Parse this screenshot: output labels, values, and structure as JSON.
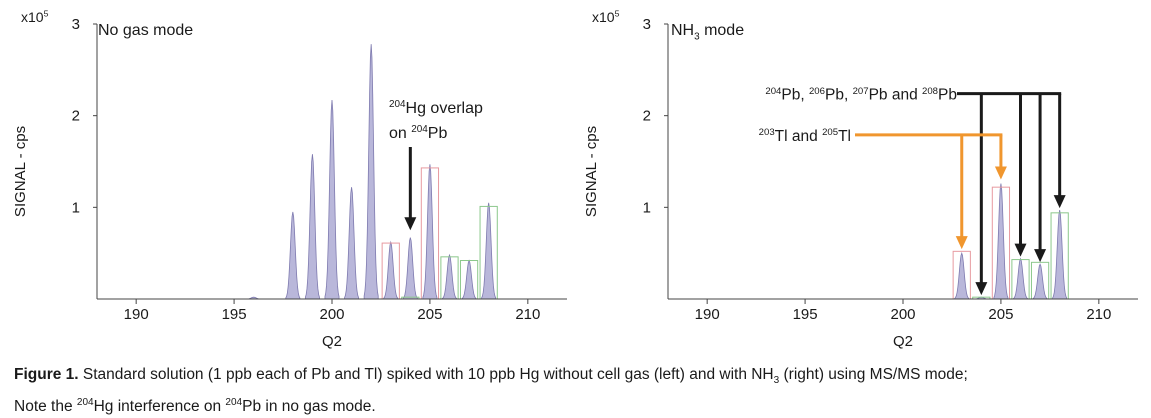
{
  "chart_data": [
    {
      "type": "area",
      "panel": "left",
      "mode_label": "No gas mode",
      "ylabel": "SIGNAL - cps",
      "xlabel": "Q2",
      "y_scale_label": {
        "base": "x10",
        "exp": "5"
      },
      "xlim": [
        188,
        212
      ],
      "ylim": [
        0,
        3
      ],
      "x_ticks": [
        "190",
        "195",
        "200",
        "205",
        "210"
      ],
      "x_tick_values": [
        190,
        195,
        200,
        205,
        210
      ],
      "y_ticks": [
        "1",
        "2",
        "3"
      ],
      "y_tick_values": [
        1,
        2,
        3
      ],
      "peaks": [
        {
          "x": 196,
          "value": 0.02
        },
        {
          "x": 198,
          "value": 0.95
        },
        {
          "x": 199,
          "value": 1.58
        },
        {
          "x": 200,
          "value": 2.17
        },
        {
          "x": 201,
          "value": 1.22
        },
        {
          "x": 202,
          "value": 2.78
        },
        {
          "x": 203,
          "value": 0.62
        },
        {
          "x": 204,
          "value": 0.67
        },
        {
          "x": 205,
          "value": 1.47
        },
        {
          "x": 206,
          "value": 0.48
        },
        {
          "x": 207,
          "value": 0.42
        },
        {
          "x": 208,
          "value": 1.05
        }
      ],
      "boxes": [
        {
          "x": 203,
          "value": 0.61,
          "color": "pink"
        },
        {
          "x": 204,
          "value": 0.02,
          "color": "green"
        },
        {
          "x": 205,
          "value": 1.43,
          "color": "pink"
        },
        {
          "x": 206,
          "value": 0.46,
          "color": "green"
        },
        {
          "x": 207,
          "value": 0.42,
          "color": "green"
        },
        {
          "x": 208,
          "value": 1.01,
          "color": "green"
        }
      ],
      "annotation": {
        "text": [
          [
            {
              "sup": "204"
            },
            {
              "t": "Hg overlap"
            }
          ],
          [
            {
              "t": "on "
            },
            {
              "sup": "204"
            },
            {
              "t": "Pb"
            }
          ]
        ],
        "arrow_x": 204,
        "arrow_to_value": 0.75
      }
    },
    {
      "type": "area",
      "panel": "right",
      "mode_label": {
        "main": "NH",
        "sub": "3",
        "rest": " mode"
      },
      "ylabel": "SIGNAL - cps",
      "xlabel": "Q2",
      "y_scale_label": {
        "base": "x10",
        "exp": "5"
      },
      "xlim": [
        188,
        212
      ],
      "ylim": [
        0,
        3
      ],
      "x_ticks": [
        "190",
        "195",
        "200",
        "205",
        "210"
      ],
      "x_tick_values": [
        190,
        195,
        200,
        205,
        210
      ],
      "y_ticks": [
        "1",
        "2",
        "3"
      ],
      "y_tick_values": [
        1,
        2,
        3
      ],
      "peaks": [
        {
          "x": 203,
          "value": 0.5
        },
        {
          "x": 204,
          "value": 0.02
        },
        {
          "x": 205,
          "value": 1.26
        },
        {
          "x": 206,
          "value": 0.44
        },
        {
          "x": 207,
          "value": 0.38
        },
        {
          "x": 208,
          "value": 0.97
        }
      ],
      "boxes": [
        {
          "x": 203,
          "value": 0.52,
          "color": "pink"
        },
        {
          "x": 204,
          "value": 0.02,
          "color": "green"
        },
        {
          "x": 205,
          "value": 1.22,
          "color": "pink"
        },
        {
          "x": 206,
          "value": 0.43,
          "color": "green"
        },
        {
          "x": 207,
          "value": 0.4,
          "color": "green"
        },
        {
          "x": 208,
          "value": 0.94,
          "color": "green"
        }
      ],
      "labels": {
        "pb": [
          {
            "sup": "204"
          },
          {
            "t": "Pb, "
          },
          {
            "sup": "206"
          },
          {
            "t": "Pb, "
          },
          {
            "sup": "207"
          },
          {
            "t": "Pb and "
          },
          {
            "sup": "208"
          },
          {
            "t": "Pb"
          }
        ],
        "tl": [
          {
            "sup": "203"
          },
          {
            "t": "Tl and "
          },
          {
            "sup": "205"
          },
          {
            "t": "Tl"
          }
        ]
      },
      "pb_arrow_targets": [
        204,
        206,
        207,
        208
      ],
      "pb_arrow_level": 2.24,
      "tl_arrow_targets": [
        203,
        205
      ],
      "tl_arrow_level": 1.79
    }
  ],
  "colors": {
    "peak_fill": "#b9b7da",
    "peak_stroke": "#7e7aaf",
    "axis": "#444444",
    "pink_box": "#e79aa0",
    "green_box": "#8cc88c",
    "orange": "#f0962e",
    "black": "#1a1a1a"
  },
  "caption": {
    "label": "Figure 1.",
    "part1": " Standard solution (1 ppb each of Pb and Tl) spiked with 10 ppb Hg without cell gas (left) and with NH",
    "sub": "3",
    "part2": " (right) using MS/MS mode;",
    "part3": "Note the ",
    "sup1": "204",
    "part4": "Hg interference on ",
    "sup2": "204",
    "part5": "Pb in no gas mode."
  }
}
